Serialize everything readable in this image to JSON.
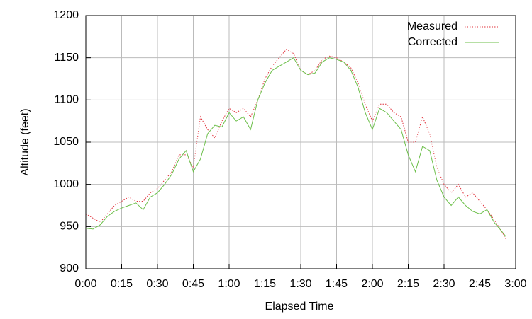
{
  "chart_data": {
    "type": "line",
    "xlabel": "Elapsed Time",
    "ylabel": "Altitude (feet)",
    "x": [
      0,
      3,
      6,
      9,
      12,
      15,
      18,
      21,
      24,
      27,
      30,
      33,
      36,
      39,
      42,
      45,
      48,
      51,
      54,
      57,
      60,
      63,
      66,
      69,
      72,
      75,
      78,
      81,
      84,
      87,
      90,
      93,
      96,
      99,
      102,
      105,
      108,
      111,
      114,
      117,
      120,
      123,
      126,
      129,
      132,
      135,
      138,
      141,
      144,
      147,
      150,
      153,
      156,
      159,
      162,
      165,
      168,
      171,
      174,
      176
    ],
    "series": [
      {
        "name": "Measured",
        "color": "#e0303a",
        "dash": "dotted",
        "values": [
          965,
          960,
          955,
          965,
          975,
          980,
          985,
          980,
          980,
          990,
          995,
          1005,
          1015,
          1035,
          1035,
          1020,
          1080,
          1065,
          1055,
          1075,
          1090,
          1085,
          1090,
          1080,
          1100,
          1125,
          1140,
          1150,
          1160,
          1155,
          1135,
          1130,
          1135,
          1148,
          1152,
          1150,
          1145,
          1138,
          1120,
          1095,
          1075,
          1095,
          1095,
          1085,
          1080,
          1050,
          1050,
          1080,
          1060,
          1020,
          1000,
          990,
          1000,
          985,
          990,
          980,
          970,
          958,
          945,
          935
        ]
      },
      {
        "name": "Corrected",
        "color": "#6cbf4a",
        "dash": "solid",
        "values": [
          948,
          947,
          952,
          962,
          968,
          972,
          975,
          978,
          970,
          985,
          990,
          1000,
          1012,
          1030,
          1040,
          1015,
          1030,
          1060,
          1070,
          1068,
          1085,
          1075,
          1080,
          1065,
          1100,
          1120,
          1135,
          1140,
          1145,
          1150,
          1135,
          1130,
          1132,
          1145,
          1150,
          1148,
          1145,
          1135,
          1115,
          1085,
          1065,
          1090,
          1085,
          1075,
          1065,
          1035,
          1015,
          1045,
          1040,
          1005,
          985,
          975,
          985,
          975,
          968,
          965,
          970,
          955,
          945,
          938
        ]
      }
    ],
    "xlim": [
      0,
      180
    ],
    "xticks": [
      {
        "value": 0,
        "label": "0:00"
      },
      {
        "value": 15,
        "label": "0:15"
      },
      {
        "value": 30,
        "label": "0:30"
      },
      {
        "value": 45,
        "label": "0:45"
      },
      {
        "value": 60,
        "label": "1:00"
      },
      {
        "value": 75,
        "label": "1:15"
      },
      {
        "value": 90,
        "label": "1:30"
      },
      {
        "value": 105,
        "label": "1:45"
      },
      {
        "value": 120,
        "label": "2:00"
      },
      {
        "value": 135,
        "label": "2:15"
      },
      {
        "value": 150,
        "label": "2:30"
      },
      {
        "value": 165,
        "label": "2:45"
      },
      {
        "value": 180,
        "label": "3:00"
      }
    ],
    "ylim": [
      900,
      1200
    ],
    "yticks": [
      900,
      950,
      1000,
      1050,
      1100,
      1150,
      1200
    ],
    "grid": true,
    "legend": "top-right"
  }
}
